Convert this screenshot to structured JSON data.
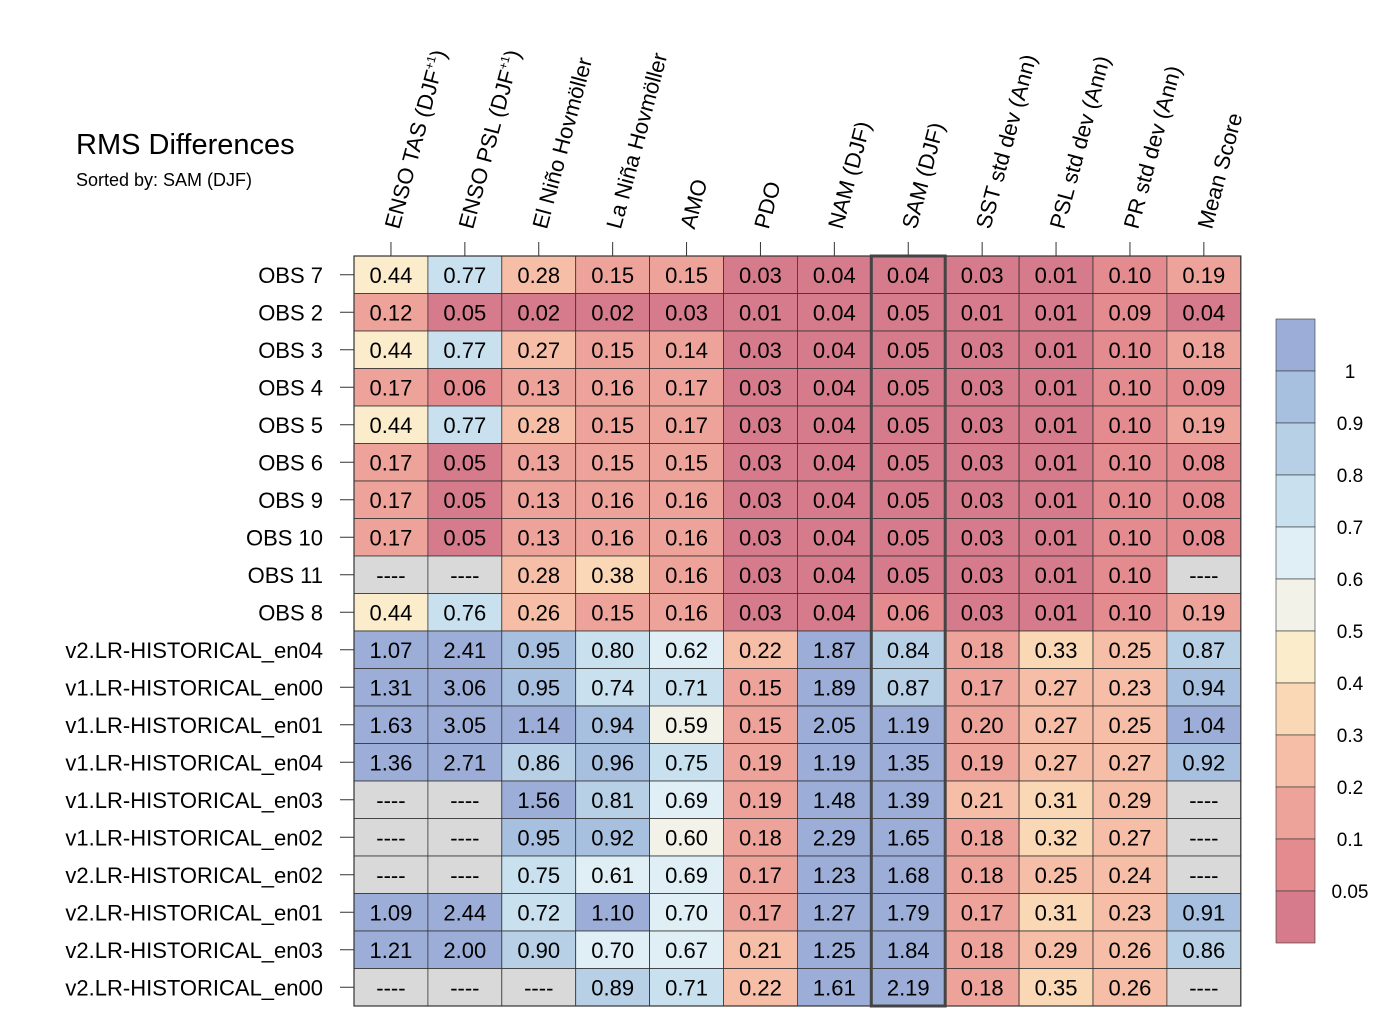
{
  "chart_data": {
    "type": "heatmap",
    "title": "RMS Differences",
    "subtitle": "Sorted by: SAM (DJF)",
    "columns": [
      "ENSO TAS (DJF+1)",
      "ENSO PSL (DJF+1)",
      "El Niño Hovmöller",
      "La Niña Hovmöller",
      "AMO",
      "PDO",
      "NAM (DJF)",
      "SAM (DJF)",
      "SST std dev (Ann)",
      "PSL std dev (Ann)",
      "PR std dev (Ann)",
      "Mean Score"
    ],
    "highlighted_column": "SAM (DJF)",
    "rows": [
      {
        "name": "OBS 7",
        "values": [
          "0.44",
          "0.77",
          "0.28",
          "0.15",
          "0.15",
          "0.03",
          "0.04",
          "0.04",
          "0.03",
          "0.01",
          "0.10",
          "0.19"
        ]
      },
      {
        "name": "OBS 2",
        "values": [
          "0.12",
          "0.05",
          "0.02",
          "0.02",
          "0.03",
          "0.01",
          "0.04",
          "0.05",
          "0.01",
          "0.01",
          "0.09",
          "0.04"
        ]
      },
      {
        "name": "OBS 3",
        "values": [
          "0.44",
          "0.77",
          "0.27",
          "0.15",
          "0.14",
          "0.03",
          "0.04",
          "0.05",
          "0.03",
          "0.01",
          "0.10",
          "0.18"
        ]
      },
      {
        "name": "OBS 4",
        "values": [
          "0.17",
          "0.06",
          "0.13",
          "0.16",
          "0.17",
          "0.03",
          "0.04",
          "0.05",
          "0.03",
          "0.01",
          "0.10",
          "0.09"
        ]
      },
      {
        "name": "OBS 5",
        "values": [
          "0.44",
          "0.77",
          "0.28",
          "0.15",
          "0.17",
          "0.03",
          "0.04",
          "0.05",
          "0.03",
          "0.01",
          "0.10",
          "0.19"
        ]
      },
      {
        "name": "OBS 6",
        "values": [
          "0.17",
          "0.05",
          "0.13",
          "0.15",
          "0.15",
          "0.03",
          "0.04",
          "0.05",
          "0.03",
          "0.01",
          "0.10",
          "0.08"
        ]
      },
      {
        "name": "OBS 9",
        "values": [
          "0.17",
          "0.05",
          "0.13",
          "0.16",
          "0.16",
          "0.03",
          "0.04",
          "0.05",
          "0.03",
          "0.01",
          "0.10",
          "0.08"
        ]
      },
      {
        "name": "OBS 10",
        "values": [
          "0.17",
          "0.05",
          "0.13",
          "0.16",
          "0.16",
          "0.03",
          "0.04",
          "0.05",
          "0.03",
          "0.01",
          "0.10",
          "0.08"
        ]
      },
      {
        "name": "OBS 11",
        "values": [
          "----",
          "----",
          "0.28",
          "0.38",
          "0.16",
          "0.03",
          "0.04",
          "0.05",
          "0.03",
          "0.01",
          "0.10",
          "----"
        ]
      },
      {
        "name": "OBS 8",
        "values": [
          "0.44",
          "0.76",
          "0.26",
          "0.15",
          "0.16",
          "0.03",
          "0.04",
          "0.06",
          "0.03",
          "0.01",
          "0.10",
          "0.19"
        ]
      },
      {
        "name": "v2.LR-HISTORICAL_en04",
        "values": [
          "1.07",
          "2.41",
          "0.95",
          "0.80",
          "0.62",
          "0.22",
          "1.87",
          "0.84",
          "0.18",
          "0.33",
          "0.25",
          "0.87"
        ]
      },
      {
        "name": "v1.LR-HISTORICAL_en00",
        "values": [
          "1.31",
          "3.06",
          "0.95",
          "0.74",
          "0.71",
          "0.15",
          "1.89",
          "0.87",
          "0.17",
          "0.27",
          "0.23",
          "0.94"
        ]
      },
      {
        "name": "v1.LR-HISTORICAL_en01",
        "values": [
          "1.63",
          "3.05",
          "1.14",
          "0.94",
          "0.59",
          "0.15",
          "2.05",
          "1.19",
          "0.20",
          "0.27",
          "0.25",
          "1.04"
        ]
      },
      {
        "name": "v1.LR-HISTORICAL_en04",
        "values": [
          "1.36",
          "2.71",
          "0.86",
          "0.96",
          "0.75",
          "0.19",
          "1.19",
          "1.35",
          "0.19",
          "0.27",
          "0.27",
          "0.92"
        ]
      },
      {
        "name": "v1.LR-HISTORICAL_en03",
        "values": [
          "----",
          "----",
          "1.56",
          "0.81",
          "0.69",
          "0.19",
          "1.48",
          "1.39",
          "0.21",
          "0.31",
          "0.29",
          "----"
        ]
      },
      {
        "name": "v1.LR-HISTORICAL_en02",
        "values": [
          "----",
          "----",
          "0.95",
          "0.92",
          "0.60",
          "0.18",
          "2.29",
          "1.65",
          "0.18",
          "0.32",
          "0.27",
          "----"
        ]
      },
      {
        "name": "v2.LR-HISTORICAL_en02",
        "values": [
          "----",
          "----",
          "0.75",
          "0.61",
          "0.69",
          "0.17",
          "1.23",
          "1.68",
          "0.18",
          "0.25",
          "0.24",
          "----"
        ]
      },
      {
        "name": "v2.LR-HISTORICAL_en01",
        "values": [
          "1.09",
          "2.44",
          "0.72",
          "1.10",
          "0.70",
          "0.17",
          "1.27",
          "1.79",
          "0.17",
          "0.31",
          "0.23",
          "0.91"
        ]
      },
      {
        "name": "v2.LR-HISTORICAL_en03",
        "values": [
          "1.21",
          "2.00",
          "0.90",
          "0.70",
          "0.67",
          "0.21",
          "1.25",
          "1.84",
          "0.18",
          "0.29",
          "0.26",
          "0.86"
        ]
      },
      {
        "name": "v2.LR-HISTORICAL_en00",
        "values": [
          "----",
          "----",
          "----",
          "0.89",
          "0.71",
          "0.22",
          "1.61",
          "2.19",
          "0.18",
          "0.35",
          "0.26",
          "----"
        ]
      }
    ],
    "missing_marker": "----",
    "colorbar": {
      "boundaries": [
        0,
        0.05,
        0.1,
        0.2,
        0.3,
        0.4,
        0.5,
        0.6,
        0.7,
        0.8,
        0.9,
        1
      ],
      "tick_labels": [
        "1",
        "0.9",
        "0.8",
        "0.7",
        "0.6",
        "0.5",
        "0.4",
        "0.3",
        "0.2",
        "0.1",
        "0.05"
      ],
      "colors_low_to_high": [
        "#d67b8b",
        "#e38b8e",
        "#eea39a",
        "#f6bea6",
        "#fad8b6",
        "#fbeccb",
        "#f2f2e8",
        "#e0eff5",
        "#c9e1ee",
        "#b7d0e5",
        "#a8c0df",
        "#9caed7"
      ],
      "missing_color": "#d9d9d9"
    }
  }
}
